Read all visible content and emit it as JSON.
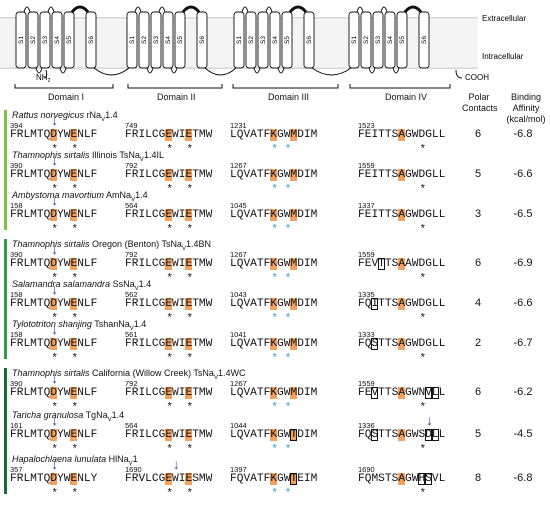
{
  "membrane": {
    "extracellular": "Extracellular",
    "intracellular": "Intracellular",
    "nh2": "NH",
    "nh2_sub": "2",
    "cooh": "COOH"
  },
  "segments": [
    "S1",
    "S2",
    "S3",
    "S4",
    "S5",
    "S6"
  ],
  "domains": [
    "Domain I",
    "Domain II",
    "Domain III",
    "Domain IV"
  ],
  "headers": {
    "polar": "Polar\nContacts",
    "binding": "Binding\nAffinity\n(kcal/mol)"
  },
  "colors": {
    "group1": "#7dc242",
    "group2": "#2f9e48",
    "group3": "#1a6b33",
    "highlight": "#f2a15e",
    "arrow": "#1f4ea5",
    "star_blue": "#2a9fd6"
  },
  "rows": [
    {
      "species": "Rattus norvegicus",
      "strain": "",
      "channel": "rNa",
      "ch_sub": "V",
      "ch_suffix": "1.4",
      "nums": [
        "394",
        "749",
        "1231",
        "1523"
      ],
      "polar": "6",
      "binding": "-6.8",
      "group": 1
    },
    {
      "species": "Thamnophis sirtalis",
      "strain": "Illinois",
      "channel": "TsNa",
      "ch_sub": "V",
      "ch_suffix": "1.4IL",
      "nums": [
        "390",
        "792",
        "1267",
        "1559"
      ],
      "polar": "5",
      "binding": "-6.6",
      "group": 1
    },
    {
      "species": "Ambystoma mavortium",
      "strain": "",
      "channel": "AmNa",
      "ch_sub": "V",
      "ch_suffix": "1.4",
      "nums": [
        "158",
        "564",
        "1045",
        "1337"
      ],
      "polar": "3",
      "binding": "-6.5",
      "group": 1
    },
    {
      "species": "Thamnophis sirtalis",
      "strain": "Oregon (Benton)",
      "channel": "TsNa",
      "ch_sub": "V",
      "ch_suffix": "1.4BN",
      "nums": [
        "390",
        "792",
        "1267",
        "1559"
      ],
      "polar": "6",
      "binding": "-6.9",
      "group": 2
    },
    {
      "species": "Salamandra salamandra",
      "strain": "",
      "channel": "SsNa",
      "ch_sub": "V",
      "ch_suffix": "1.4",
      "nums": [
        "158",
        "562",
        "1043",
        "1335"
      ],
      "polar": "4",
      "binding": "-6.6",
      "group": 2
    },
    {
      "species": "Tylototriton shanjing",
      "strain": "",
      "channel": "TshanNa",
      "ch_sub": "V",
      "ch_suffix": "1.4",
      "nums": [
        "158",
        "561",
        "1041",
        "1333"
      ],
      "polar": "2",
      "binding": "-6.7",
      "group": 2
    },
    {
      "species": "Thamnophis sirtalis",
      "strain": "California (Willow Creek)",
      "channel": "TsNa",
      "ch_sub": "V",
      "ch_suffix": "1.4WC",
      "nums": [
        "390",
        "792",
        "1267",
        "1559"
      ],
      "polar": "6",
      "binding": "-6.2",
      "group": 3
    },
    {
      "species": "Taricha granulosa",
      "strain": "",
      "channel": "TgNa",
      "ch_sub": "V",
      "ch_suffix": "1.4",
      "nums": [
        "161",
        "564",
        "1044",
        "1336"
      ],
      "polar": "5",
      "binding": "-4.5",
      "group": 3
    },
    {
      "species": "Hapalochlaena lunulata",
      "strain": "",
      "channel": "HlNa",
      "ch_sub": "V",
      "ch_suffix": "1",
      "nums": [
        "357",
        "1690",
        "1397",
        "1690"
      ],
      "polar": "8",
      "binding": "-6.8",
      "group": 3
    }
  ],
  "sequences": [
    [
      "FRLMTQDYWENLF",
      "FRILCGEWIETMW",
      "LQVATFKGWMDIM",
      "FEITTSAGWDGLL"
    ],
    [
      "FRLMTQDYWENLF",
      "FRILCGEWIETMW",
      "LQVATFKGWMDIM",
      "FEITTSAGWDGLL"
    ],
    [
      "FRLMTQDYWENLF",
      "FRILCGEWIETMW",
      "LQVATFKGWMDIM",
      "FEITTSAGWDGLL"
    ],
    [
      "FRLMTQDYWENLF",
      "FRILCGEWIETMW",
      "LQVATFKGWMDIM",
      "FEVTTSAAWDGLL"
    ],
    [
      "FRLMTQDYWENLF",
      "FRILCGEWIETMW",
      "LQVATFKGWMDIM",
      "FQITTSAGWDGLL"
    ],
    [
      "FRLMTQDYWENLF",
      "FRILCGEWIETMW",
      "LQVATFKGWMDIM",
      "FQSTTSAGWDGLL"
    ],
    [
      "FRLMTQDYWENLF",
      "FRILCGEWIETMW",
      "LQVATFKGWMDIM",
      "FEVTTSAGWNVLL"
    ],
    [
      "FRLMTQDYWENLF",
      "FRILCGEWIETMW",
      "LQVATFKGWTDIM",
      "FQSTTSAGWSDLL"
    ],
    [
      "FRLMTQDYWENLY",
      "FRVLCGEWIESMW",
      "FQVATFKGWTEIM",
      "FQMSTSAGWHSVL"
    ]
  ]
}
